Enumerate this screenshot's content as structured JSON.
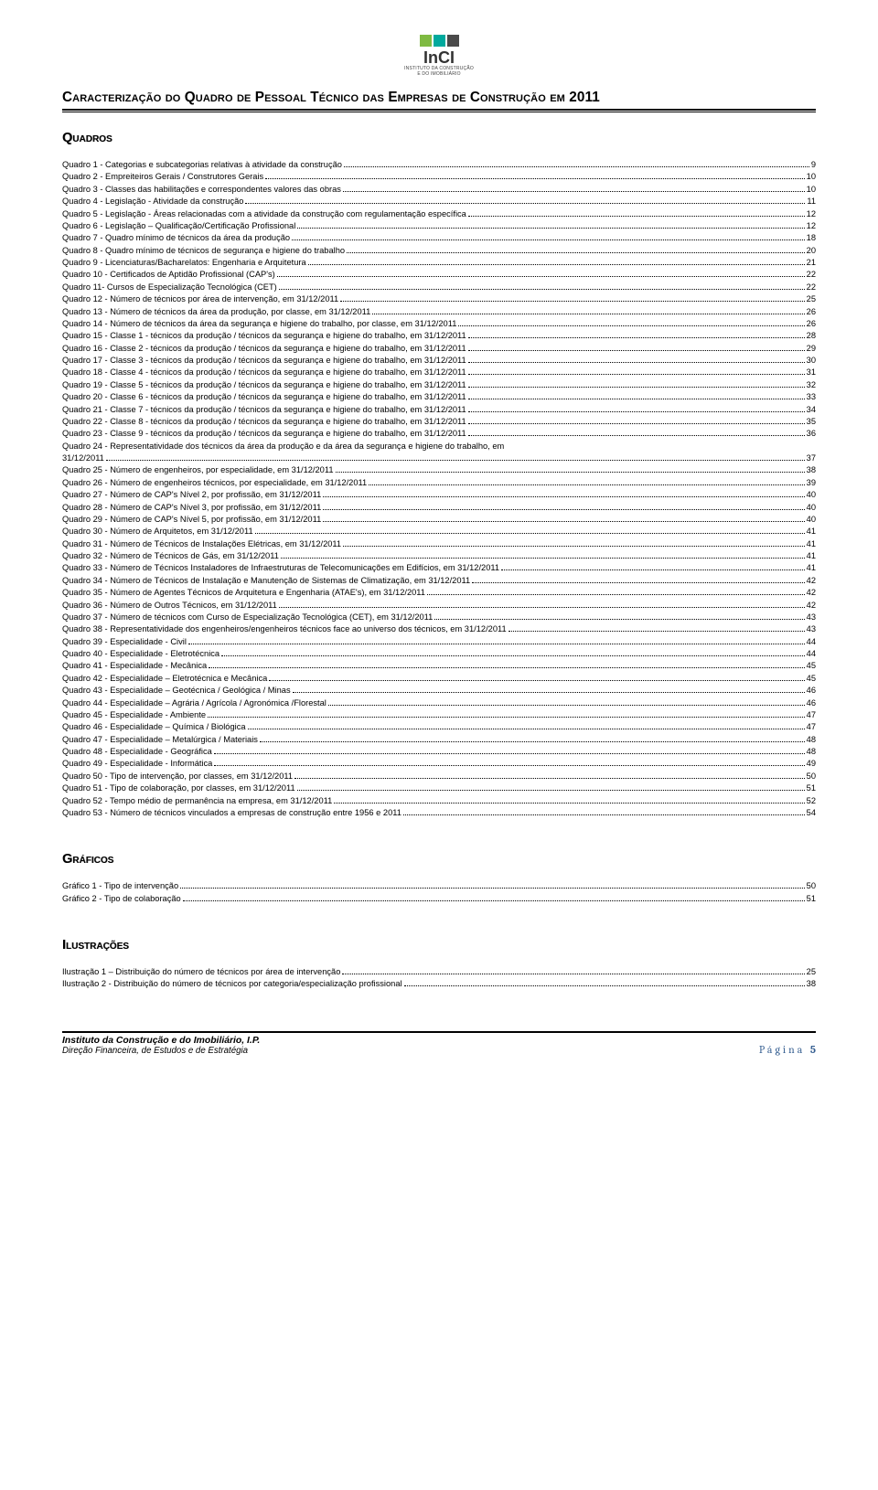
{
  "logo": {
    "colors": [
      "#7fba42",
      "#00a99d",
      "#4a4a4a"
    ],
    "text": "InCI",
    "subtitle1": "INSTITUTO DA CONSTRUÇÃO",
    "subtitle2": "E DO IMOBILIÁRIO"
  },
  "doc_title": "Caracterização do Quadro de Pessoal Técnico das Empresas de Construção em 2011",
  "sections": {
    "quadros": "Quadros",
    "graficos": "Gráficos",
    "ilustracoes": "Ilustrações"
  },
  "quadros": [
    {
      "label": "Quadro 1 - Categorias e subcategorias relativas à atividade da construção",
      "page": "9"
    },
    {
      "label": "Quadro 2 - Empreiteiros Gerais / Construtores Gerais",
      "page": "10"
    },
    {
      "label": "Quadro 3 - Classes das habilitações e correspondentes valores das obras",
      "page": "10"
    },
    {
      "label": "Quadro 4 - Legislação - Atividade da construção",
      "page": "11"
    },
    {
      "label": "Quadro 5 - Legislação - Áreas relacionadas com a atividade da construção com regulamentação específica",
      "page": "12"
    },
    {
      "label": "Quadro 6 - Legislação – Qualificação/Certificação Profissional",
      "page": "12"
    },
    {
      "label": "Quadro 7 - Quadro mínimo de técnicos da área da produção",
      "page": "18"
    },
    {
      "label": "Quadro 8 - Quadro mínimo de técnicos de segurança e higiene do trabalho",
      "page": "20"
    },
    {
      "label": "Quadro 9 - Licenciaturas/Bacharelatos: Engenharia e Arquitetura",
      "page": "21"
    },
    {
      "label": "Quadro 10 - Certificados de Aptidão Profissional (CAP's)",
      "page": "22"
    },
    {
      "label": "Quadro 11- Cursos de Especialização Tecnológica (CET)",
      "page": "22"
    },
    {
      "label": "Quadro 12 - Número de técnicos por área de intervenção, em 31/12/2011",
      "page": "25"
    },
    {
      "label": "Quadro 13 - Número de técnicos da área da produção, por classe, em 31/12/2011",
      "page": "26"
    },
    {
      "label": "Quadro 14 - Número de técnicos da área da segurança e higiene do trabalho, por classe, em 31/12/2011",
      "page": "26"
    },
    {
      "label": "Quadro 15 - Classe 1 - técnicos da produção / técnicos da segurança e higiene do trabalho, em 31/12/2011",
      "page": "28"
    },
    {
      "label": "Quadro 16 - Classe 2 - técnicos da produção / técnicos da segurança e higiene do trabalho, em 31/12/2011",
      "page": "29"
    },
    {
      "label": "Quadro 17 - Classe 3 - técnicos da produção / técnicos da segurança e higiene do trabalho, em 31/12/2011",
      "page": "30"
    },
    {
      "label": "Quadro 18 - Classe 4 - técnicos da produção / técnicos da segurança e higiene do trabalho, em 31/12/2011",
      "page": "31"
    },
    {
      "label": "Quadro 19 - Classe 5 - técnicos da produção / técnicos da segurança e higiene do trabalho, em 31/12/2011",
      "page": "32"
    },
    {
      "label": "Quadro 20 - Classe 6 - técnicos da produção / técnicos da segurança e higiene do trabalho, em 31/12/2011",
      "page": "33"
    },
    {
      "label": "Quadro 21 - Classe 7 - técnicos da produção / técnicos da segurança e higiene do trabalho, em 31/12/2011",
      "page": "34"
    },
    {
      "label": "Quadro 22 - Classe 8 - técnicos da produção / técnicos da segurança e higiene do trabalho, em 31/12/2011",
      "page": "35"
    },
    {
      "label": "Quadro 23 - Classe 9 - técnicos da produção / técnicos da segurança e higiene do trabalho, em 31/12/2011",
      "page": "36"
    },
    {
      "label": "Quadro 24 - Representatividade dos técnicos da área da produção e da área da segurança e higiene do trabalho, em 31/12/2011",
      "page": "37",
      "wrap": true
    },
    {
      "label": "Quadro 25 - Número de engenheiros, por especialidade, em 31/12/2011",
      "page": "38"
    },
    {
      "label": "Quadro 26 - Número de engenheiros técnicos, por especialidade, em 31/12/2011",
      "page": "39"
    },
    {
      "label": "Quadro 27 - Número de CAP's Nível 2, por profissão, em 31/12/2011",
      "page": "40"
    },
    {
      "label": "Quadro 28 - Número de CAP's Nível 3, por profissão, em 31/12/2011",
      "page": "40"
    },
    {
      "label": "Quadro 29 - Número de CAP's Nível 5, por profissão, em 31/12/2011",
      "page": "40"
    },
    {
      "label": "Quadro 30 - Número de Arquitetos, em 31/12/2011",
      "page": "41"
    },
    {
      "label": "Quadro 31 - Número de Técnicos de Instalações Elétricas, em 31/12/2011",
      "page": "41"
    },
    {
      "label": "Quadro 32 - Número de Técnicos de Gás, em 31/12/2011",
      "page": "41"
    },
    {
      "label": "Quadro 33 - Número de Técnicos Instaladores de Infraestruturas de Telecomunicações em Edifícios, em 31/12/2011",
      "page": "41"
    },
    {
      "label": "Quadro 34 - Número de Técnicos de Instalação e Manutenção de Sistemas de Climatização, em 31/12/2011",
      "page": "42"
    },
    {
      "label": "Quadro 35 - Número de Agentes Técnicos de Arquitetura e Engenharia (ATAE's), em 31/12/2011",
      "page": "42"
    },
    {
      "label": "Quadro 36 - Número de Outros Técnicos, em 31/12/2011",
      "page": "42"
    },
    {
      "label": "Quadro 37 - Número de técnicos com Curso de Especialização Tecnológica (CET), em 31/12/2011",
      "page": "43"
    },
    {
      "label": "Quadro 38 - Representatividade dos engenheiros/engenheiros técnicos face ao universo dos técnicos, em 31/12/2011",
      "page": "43"
    },
    {
      "label": "Quadro 39 - Especialidade - Civil",
      "page": "44"
    },
    {
      "label": "Quadro 40 - Especialidade - Eletrotécnica",
      "page": "44"
    },
    {
      "label": "Quadro 41 - Especialidade - Mecânica",
      "page": "45"
    },
    {
      "label": "Quadro 42 - Especialidade – Eletrotécnica e Mecânica",
      "page": "45"
    },
    {
      "label": "Quadro 43 - Especialidade – Geotécnica / Geológica / Minas",
      "page": "46"
    },
    {
      "label": "Quadro 44 - Especialidade – Agrária / Agrícola / Agronómica /Florestal",
      "page": "46"
    },
    {
      "label": "Quadro 45 - Especialidade - Ambiente",
      "page": "47"
    },
    {
      "label": "Quadro 46 - Especialidade – Química / Biológica",
      "page": "47"
    },
    {
      "label": "Quadro 47 - Especialidade – Metalúrgica / Materiais",
      "page": "48"
    },
    {
      "label": "Quadro 48 - Especialidade - Geográfica",
      "page": "48"
    },
    {
      "label": "Quadro 49 - Especialidade - Informática",
      "page": "49"
    },
    {
      "label": "Quadro 50 - Tipo de intervenção, por classes, em 31/12/2011",
      "page": "50"
    },
    {
      "label": "Quadro 51 - Tipo de colaboração, por classes, em 31/12/2011",
      "page": "51"
    },
    {
      "label": "Quadro 52 - Tempo médio de permanência na empresa, em 31/12/2011",
      "page": "52"
    },
    {
      "label": "Quadro 53 - Número de técnicos vinculados a empresas de construção entre 1956 e 2011",
      "page": "54"
    }
  ],
  "graficos": [
    {
      "label": "Gráfico 1 - Tipo de intervenção",
      "page": "50"
    },
    {
      "label": "Gráfico 2 - Tipo de colaboração",
      "page": "51"
    }
  ],
  "ilustracoes": [
    {
      "label": "Ilustração 1 – Distribuição do número de técnicos por área de intervenção",
      "page": "25"
    },
    {
      "label": "Ilustração 2 - Distribuição do número de técnicos por categoria/especialização profissional",
      "page": "38"
    }
  ],
  "footer": {
    "institute": "Instituto da Construção e do Imobiliário, I.P.",
    "department": "Direção Financeira, de Estudos e de Estratégia",
    "page_label": "Página ",
    "page_num": "5"
  }
}
